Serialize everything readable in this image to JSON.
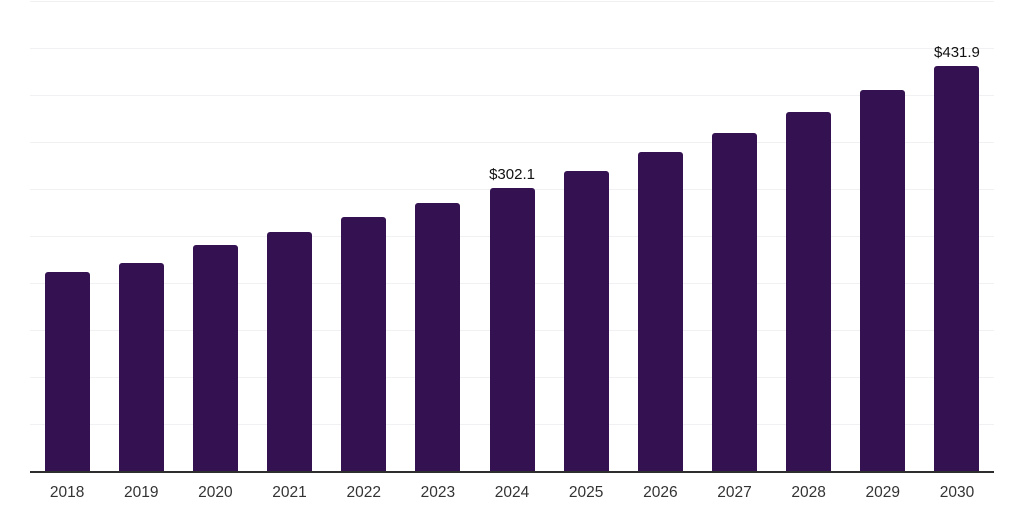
{
  "chart_data": {
    "type": "bar",
    "categories": [
      "2018",
      "2019",
      "2020",
      "2021",
      "2022",
      "2023",
      "2024",
      "2025",
      "2026",
      "2027",
      "2028",
      "2029",
      "2030"
    ],
    "values": [
      212.5,
      222.5,
      241.5,
      255.0,
      271.0,
      286.5,
      302.1,
      319.7,
      340.0,
      361.1,
      383.2,
      406.5,
      431.9
    ],
    "bar_labels": [
      "",
      "",
      "",
      "",
      "",
      "",
      "$302.1",
      "",
      "",
      "",
      "",
      "",
      "$431.9"
    ],
    "title": "",
    "xlabel": "",
    "ylabel": "",
    "ylim": [
      0,
      500
    ],
    "grid_step": 50,
    "grid": true,
    "legend": false,
    "legend_position": "none",
    "y_tick_labels_visible": false
  },
  "style": {
    "bar_color": "#341150",
    "gridline_color": "#f1f1f3",
    "axis_line_color": "#2e2e2e",
    "data_label_color": "#111111",
    "tick_label_color": "#333333",
    "background_color": "#ffffff"
  }
}
